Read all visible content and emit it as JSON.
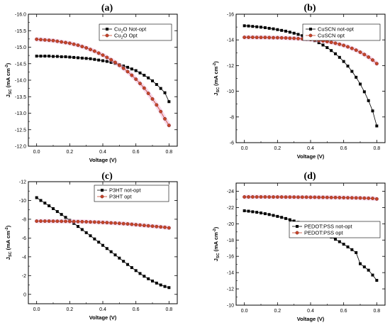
{
  "chart_data": [
    {
      "type": "line",
      "panel_label": "(a)",
      "xlabel": "Voltage (V)",
      "ylabel_main": "J",
      "ylabel_sub": "SC",
      "ylabel_unit": "(mA cm",
      "ylabel_exp": "-2",
      "ylabel_close": ")",
      "xlim": [
        -0.05,
        0.85
      ],
      "ylim": [
        -12.0,
        -16.0
      ],
      "xticks": [
        0.0,
        0.2,
        0.4,
        0.6,
        0.8
      ],
      "xtick_labels": [
        "0.0",
        "0.2",
        "0.4",
        "0.6",
        "0.8"
      ],
      "yticks": [
        -12.0,
        -12.5,
        -13.0,
        -13.5,
        -14.0,
        -14.5,
        -15.0,
        -15.5,
        -16.0
      ],
      "ytick_labels": [
        "-12.0",
        "-12.5",
        "-13.0",
        "-13.5",
        "-14.0",
        "-14.5",
        "-15.0",
        "-15.5",
        "-16.0"
      ],
      "legend_position": "top-right",
      "series": [
        {
          "name": "Cu2O Not-opt",
          "name_main": "Cu",
          "name_sub": "2",
          "name_rest": "O Not-opt",
          "marker": "square",
          "color": "#000000",
          "x": [
            0.0,
            0.025,
            0.05,
            0.075,
            0.1,
            0.125,
            0.15,
            0.175,
            0.2,
            0.225,
            0.25,
            0.275,
            0.3,
            0.325,
            0.35,
            0.375,
            0.4,
            0.425,
            0.45,
            0.475,
            0.5,
            0.525,
            0.55,
            0.575,
            0.6,
            0.625,
            0.65,
            0.675,
            0.7,
            0.725,
            0.75,
            0.775,
            0.8
          ],
          "y": [
            -14.73,
            -14.73,
            -14.73,
            -14.73,
            -14.72,
            -14.72,
            -14.71,
            -14.71,
            -14.7,
            -14.69,
            -14.68,
            -14.67,
            -14.66,
            -14.65,
            -14.63,
            -14.61,
            -14.59,
            -14.57,
            -14.54,
            -14.51,
            -14.47,
            -14.43,
            -14.39,
            -14.34,
            -14.29,
            -14.22,
            -14.15,
            -14.07,
            -13.98,
            -13.87,
            -13.75,
            -13.62,
            -13.35
          ]
        },
        {
          "name": "Cu2O Opt",
          "name_main": "Cu",
          "name_sub": "2",
          "name_rest": "O Opt",
          "marker": "circle",
          "color": "#c8442a",
          "x": [
            0.0,
            0.025,
            0.05,
            0.075,
            0.1,
            0.125,
            0.15,
            0.175,
            0.2,
            0.225,
            0.25,
            0.275,
            0.3,
            0.325,
            0.35,
            0.375,
            0.4,
            0.425,
            0.45,
            0.475,
            0.5,
            0.525,
            0.55,
            0.575,
            0.6,
            0.625,
            0.65,
            0.675,
            0.7,
            0.725,
            0.75,
            0.775,
            0.8
          ],
          "y": [
            -15.24,
            -15.23,
            -15.22,
            -15.21,
            -15.2,
            -15.18,
            -15.16,
            -15.14,
            -15.12,
            -15.09,
            -15.06,
            -15.02,
            -14.98,
            -14.93,
            -14.88,
            -14.82,
            -14.76,
            -14.69,
            -14.62,
            -14.54,
            -14.45,
            -14.36,
            -14.26,
            -14.15,
            -14.03,
            -13.9,
            -13.76,
            -13.6,
            -13.43,
            -13.25,
            -13.05,
            -12.83,
            -12.63
          ]
        }
      ]
    },
    {
      "type": "line",
      "panel_label": "(b)",
      "xlabel": "Voltage (V)",
      "ylabel_main": "J",
      "ylabel_sub": "SC",
      "ylabel_unit": "(mA cm",
      "ylabel_exp": "-2",
      "ylabel_close": ")",
      "xlim": [
        -0.05,
        0.85
      ],
      "ylim": [
        -6,
        -16
      ],
      "xticks": [
        0.0,
        0.2,
        0.4,
        0.6,
        0.8
      ],
      "xtick_labels": [
        "0.0",
        "0.2",
        "0.4",
        "0.6",
        "0.8"
      ],
      "yticks": [
        -6,
        -8,
        -10,
        -12,
        -14,
        -16
      ],
      "ytick_labels": [
        "-6",
        "-8",
        "-10",
        "-12",
        "-14",
        "-16"
      ],
      "legend_position": "top-right",
      "series": [
        {
          "name": "CuSCN not-opt",
          "name_main": "CuSCN not-opt",
          "name_sub": "",
          "name_rest": "",
          "marker": "square",
          "color": "#000000",
          "x": [
            0.0,
            0.025,
            0.05,
            0.075,
            0.1,
            0.125,
            0.15,
            0.175,
            0.2,
            0.225,
            0.25,
            0.275,
            0.3,
            0.325,
            0.35,
            0.375,
            0.4,
            0.425,
            0.45,
            0.475,
            0.5,
            0.525,
            0.55,
            0.575,
            0.6,
            0.625,
            0.65,
            0.675,
            0.7,
            0.725,
            0.75,
            0.775,
            0.8
          ],
          "y": [
            -15.1,
            -15.08,
            -15.05,
            -15.02,
            -14.99,
            -14.95,
            -14.9,
            -14.86,
            -14.8,
            -14.74,
            -14.68,
            -14.6,
            -14.52,
            -14.43,
            -14.33,
            -14.21,
            -14.08,
            -13.94,
            -13.78,
            -13.6,
            -13.4,
            -13.17,
            -12.92,
            -12.64,
            -12.32,
            -11.96,
            -11.55,
            -11.09,
            -10.56,
            -9.96,
            -9.27,
            -8.47,
            -7.3
          ]
        },
        {
          "name": "CuSCN opt",
          "name_main": "CuSCN opt",
          "name_sub": "",
          "name_rest": "",
          "marker": "circle",
          "color": "#c8442a",
          "x": [
            0.0,
            0.025,
            0.05,
            0.075,
            0.1,
            0.125,
            0.15,
            0.175,
            0.2,
            0.225,
            0.25,
            0.275,
            0.3,
            0.325,
            0.35,
            0.375,
            0.4,
            0.425,
            0.45,
            0.475,
            0.5,
            0.525,
            0.55,
            0.575,
            0.6,
            0.625,
            0.65,
            0.675,
            0.7,
            0.725,
            0.75,
            0.775,
            0.8
          ],
          "y": [
            -14.2,
            -14.2,
            -14.2,
            -14.19,
            -14.19,
            -14.19,
            -14.18,
            -14.17,
            -14.17,
            -14.16,
            -14.15,
            -14.13,
            -14.12,
            -14.1,
            -14.08,
            -14.06,
            -14.03,
            -14.0,
            -13.96,
            -13.92,
            -13.87,
            -13.81,
            -13.74,
            -13.66,
            -13.57,
            -13.46,
            -13.34,
            -13.2,
            -13.04,
            -12.86,
            -12.66,
            -12.43,
            -12.15
          ]
        }
      ]
    },
    {
      "type": "line",
      "panel_label": "(c)",
      "xlabel": "Voltage (V)",
      "ylabel_main": "J",
      "ylabel_sub": "SC",
      "ylabel_unit": "(mA cm",
      "ylabel_exp": "-2",
      "ylabel_close": ")",
      "xlim": [
        -0.05,
        0.85
      ],
      "ylim": [
        1,
        -12
      ],
      "xticks": [
        0.0,
        0.2,
        0.4,
        0.6,
        0.8
      ],
      "xtick_labels": [
        "0.0",
        "0.2",
        "0.4",
        "0.6",
        "0.8"
      ],
      "yticks": [
        0,
        -2,
        -4,
        -6,
        -8,
        -10,
        -12
      ],
      "ytick_labels": [
        "0",
        "-2",
        "-4",
        "-6",
        "-8",
        "-10",
        "-12"
      ],
      "legend_position": "top-right",
      "series": [
        {
          "name": "P3HT not-opt",
          "name_main": "P3HT not-opt",
          "name_sub": "",
          "name_rest": "",
          "marker": "square",
          "color": "#000000",
          "x": [
            0.0,
            0.025,
            0.05,
            0.075,
            0.1,
            0.125,
            0.15,
            0.175,
            0.2,
            0.225,
            0.25,
            0.275,
            0.3,
            0.325,
            0.35,
            0.375,
            0.4,
            0.425,
            0.45,
            0.475,
            0.5,
            0.525,
            0.55,
            0.575,
            0.6,
            0.625,
            0.65,
            0.675,
            0.7,
            0.725,
            0.75,
            0.775,
            0.8
          ],
          "y": [
            -10.3,
            -10.0,
            -9.72,
            -9.43,
            -9.13,
            -8.82,
            -8.51,
            -8.2,
            -7.88,
            -7.56,
            -7.23,
            -6.9,
            -6.57,
            -6.24,
            -5.9,
            -5.56,
            -5.22,
            -4.88,
            -4.54,
            -4.2,
            -3.86,
            -3.52,
            -3.18,
            -2.85,
            -2.53,
            -2.22,
            -1.93,
            -1.66,
            -1.42,
            -1.2,
            -1.0,
            -0.84,
            -0.72
          ]
        },
        {
          "name": "P3HT opt",
          "name_main": "P3HT opt",
          "name_sub": "",
          "name_rest": "",
          "marker": "circle",
          "color": "#c8442a",
          "x": [
            0.0,
            0.025,
            0.05,
            0.075,
            0.1,
            0.125,
            0.15,
            0.175,
            0.2,
            0.225,
            0.25,
            0.275,
            0.3,
            0.325,
            0.35,
            0.375,
            0.4,
            0.425,
            0.45,
            0.475,
            0.5,
            0.525,
            0.55,
            0.575,
            0.6,
            0.625,
            0.65,
            0.675,
            0.7,
            0.725,
            0.75,
            0.775,
            0.8
          ],
          "y": [
            -7.8,
            -7.8,
            -7.8,
            -7.8,
            -7.79,
            -7.79,
            -7.78,
            -7.78,
            -7.77,
            -7.76,
            -7.75,
            -7.74,
            -7.73,
            -7.71,
            -7.7,
            -7.68,
            -7.66,
            -7.64,
            -7.61,
            -7.59,
            -7.56,
            -7.53,
            -7.5,
            -7.46,
            -7.42,
            -7.38,
            -7.34,
            -7.3,
            -7.26,
            -7.22,
            -7.18,
            -7.14,
            -7.08
          ]
        }
      ]
    },
    {
      "type": "line",
      "panel_label": "(d)",
      "xlabel": "Voltage (V)",
      "ylabel_main": "J",
      "ylabel_sub": "SC",
      "ylabel_unit": "(mA cm",
      "ylabel_exp": "-2",
      "ylabel_close": ")",
      "xlim": [
        -0.05,
        0.85
      ],
      "ylim": [
        -10,
        -25
      ],
      "xticks": [
        0.0,
        0.2,
        0.4,
        0.6,
        0.8
      ],
      "xtick_labels": [
        "0.0",
        "0.2",
        "0.4",
        "0.6",
        "0.8"
      ],
      "yticks": [
        -10,
        -12,
        -14,
        -16,
        -18,
        -20,
        -22,
        -24
      ],
      "ytick_labels": [
        "-10",
        "-12",
        "-14",
        "-16",
        "-18",
        "-20",
        "-22",
        "-24"
      ],
      "legend_position": "right",
      "series": [
        {
          "name": "PEDOT:PSS not-opt",
          "name_main": "PEDOT:PSS not-opt",
          "name_sub": "",
          "name_rest": "",
          "marker": "square",
          "color": "#000000",
          "x": [
            0.0,
            0.025,
            0.05,
            0.075,
            0.1,
            0.125,
            0.15,
            0.175,
            0.2,
            0.225,
            0.25,
            0.275,
            0.3,
            0.325,
            0.35,
            0.375,
            0.4,
            0.425,
            0.45,
            0.475,
            0.5,
            0.525,
            0.55,
            0.575,
            0.6,
            0.625,
            0.65,
            0.675,
            0.7,
            0.725,
            0.75,
            0.775,
            0.8
          ],
          "y": [
            -21.6,
            -21.55,
            -21.48,
            -21.41,
            -21.33,
            -21.24,
            -21.14,
            -21.03,
            -20.91,
            -20.79,
            -20.65,
            -20.5,
            -20.34,
            -20.17,
            -19.99,
            -19.8,
            -19.59,
            -19.38,
            -19.15,
            -18.91,
            -18.65,
            -18.38,
            -18.1,
            -17.8,
            -17.49,
            -17.16,
            -16.82,
            -16.46,
            -15.09,
            -14.7,
            -14.3,
            -13.7,
            -13.05
          ]
        },
        {
          "name": "PEDOT:PSS opt",
          "name_main": "PEDOT:PSS opt",
          "name_sub": "",
          "name_rest": "",
          "marker": "circle",
          "color": "#c8442a",
          "x": [
            0.0,
            0.025,
            0.05,
            0.075,
            0.1,
            0.125,
            0.15,
            0.175,
            0.2,
            0.225,
            0.25,
            0.275,
            0.3,
            0.325,
            0.35,
            0.375,
            0.4,
            0.425,
            0.45,
            0.475,
            0.5,
            0.525,
            0.55,
            0.575,
            0.6,
            0.625,
            0.65,
            0.675,
            0.7,
            0.725,
            0.75,
            0.775,
            0.8
          ],
          "y": [
            -23.3,
            -23.3,
            -23.3,
            -23.3,
            -23.3,
            -23.3,
            -23.29,
            -23.29,
            -23.29,
            -23.29,
            -23.28,
            -23.28,
            -23.28,
            -23.27,
            -23.27,
            -23.27,
            -23.26,
            -23.26,
            -23.25,
            -23.25,
            -23.24,
            -23.23,
            -23.23,
            -23.22,
            -23.21,
            -23.2,
            -23.19,
            -23.18,
            -23.17,
            -23.15,
            -23.14,
            -23.12,
            -23.05
          ]
        }
      ]
    }
  ]
}
